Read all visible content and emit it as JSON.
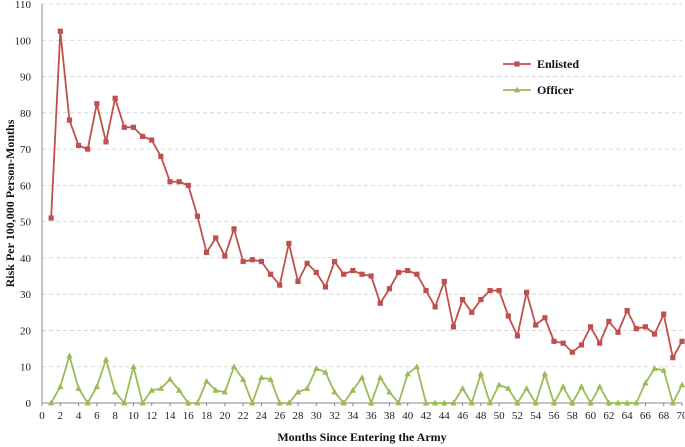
{
  "chart_data": {
    "type": "line",
    "title": "",
    "xlabel": "Months Since Entering the Army",
    "ylabel": "Risk Per 100,000 Person-Months",
    "xlim": [
      0,
      70
    ],
    "ylim": [
      0,
      110
    ],
    "x_ticks": [
      0,
      2,
      4,
      6,
      8,
      10,
      12,
      14,
      16,
      18,
      20,
      22,
      24,
      26,
      28,
      30,
      32,
      34,
      36,
      38,
      40,
      42,
      44,
      46,
      48,
      50,
      52,
      54,
      56,
      58,
      60,
      62,
      64,
      66,
      68,
      70
    ],
    "y_ticks": [
      0,
      10,
      20,
      30,
      40,
      50,
      60,
      70,
      80,
      90,
      100,
      110
    ],
    "grid": true,
    "legend_position": "top-right",
    "x": [
      1,
      2,
      3,
      4,
      5,
      6,
      7,
      8,
      9,
      10,
      11,
      12,
      13,
      14,
      15,
      16,
      17,
      18,
      19,
      20,
      21,
      22,
      23,
      24,
      25,
      26,
      27,
      28,
      29,
      30,
      31,
      32,
      33,
      34,
      35,
      36,
      37,
      38,
      39,
      40,
      41,
      42,
      43,
      44,
      45,
      46,
      47,
      48,
      49,
      50,
      51,
      52,
      53,
      54,
      55,
      56,
      57,
      58,
      59,
      60,
      61,
      62,
      63,
      64,
      65,
      66,
      67,
      68,
      69,
      70
    ],
    "series": [
      {
        "name": "Enlisted",
        "color": "#c0504d",
        "marker": "square",
        "values": [
          51,
          102.5,
          78,
          71,
          70,
          82.5,
          72,
          84,
          76,
          76,
          73.5,
          72.5,
          68,
          61,
          61,
          60,
          51.5,
          41.5,
          45.5,
          40.5,
          48,
          39,
          39.5,
          39,
          35.5,
          32.5,
          44,
          33.5,
          38.5,
          36,
          32,
          39,
          35.5,
          36.5,
          35.5,
          35,
          27.5,
          31.5,
          36,
          36.5,
          35.5,
          31,
          26.5,
          33.5,
          21,
          28.5,
          25,
          28.5,
          31,
          31,
          24,
          18.5,
          30.5,
          21.5,
          23.5,
          17,
          16.5,
          14,
          16,
          21,
          16.5,
          22.5,
          19.5,
          25.5,
          20.5,
          21,
          19,
          24.5,
          12.5,
          17
        ]
      },
      {
        "name": "Officer",
        "color": "#9bbb59",
        "marker": "triangle",
        "values": [
          0,
          4.5,
          13,
          4,
          0,
          4.5,
          12,
          3,
          0,
          10,
          0,
          3.5,
          4,
          6.5,
          3.5,
          0,
          0,
          6,
          3.5,
          3,
          10,
          6.5,
          0,
          7,
          6.5,
          0,
          0,
          3,
          4,
          9.5,
          8.5,
          3,
          0,
          3.5,
          7,
          0,
          7,
          3,
          0,
          8,
          10,
          0,
          0,
          0,
          0,
          4,
          0,
          8,
          0,
          5,
          4,
          0,
          4,
          0,
          8,
          0,
          4.5,
          0,
          4.5,
          0,
          4.5,
          0,
          0,
          0,
          0,
          5.5,
          9.5,
          9,
          0,
          5
        ]
      }
    ]
  }
}
